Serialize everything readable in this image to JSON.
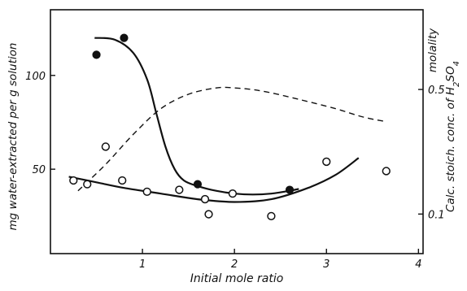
{
  "chart_data": {
    "type": "scatter",
    "title": "",
    "xlabel": "Initial mole ratio",
    "ylabel": "mg water-extracted per g solution",
    "y2label_top": "molality",
    "y2label": "Calc. stoich. conc. of H2SO4",
    "xlim": [
      0,
      4.05
    ],
    "ylim": [
      5,
      135
    ],
    "y2lim": [
      0.06,
      1.4
    ],
    "y2scale": "log",
    "grid": false,
    "x_ticks": [
      {
        "v": 1,
        "label": "1"
      },
      {
        "v": 2,
        "label": "2"
      },
      {
        "v": 3,
        "label": "3"
      },
      {
        "v": 4,
        "label": "4"
      }
    ],
    "y_ticks": [
      {
        "v": 50,
        "label": "50"
      },
      {
        "v": 100,
        "label": "100"
      }
    ],
    "y2_ticks": [
      {
        "v": 0.1,
        "label": "0.1"
      },
      {
        "v": 0.5,
        "label": "0.5"
      }
    ],
    "series": [
      {
        "name": "",
        "kind": "filled-points",
        "points": [
          [
            0.5,
            111
          ],
          [
            0.8,
            120
          ],
          [
            1.6,
            42
          ],
          [
            2.6,
            39
          ]
        ]
      },
      {
        "name": "",
        "kind": "open-points",
        "points": [
          [
            0.25,
            44
          ],
          [
            0.4,
            42
          ],
          [
            0.6,
            62
          ],
          [
            0.78,
            44
          ],
          [
            1.05,
            38
          ],
          [
            1.4,
            39
          ],
          [
            1.68,
            34
          ],
          [
            1.72,
            26
          ],
          [
            1.98,
            37
          ],
          [
            2.4,
            25
          ],
          [
            3.0,
            54
          ],
          [
            3.65,
            49
          ]
        ]
      },
      {
        "name": "",
        "kind": "solid-curve",
        "axis": "left",
        "points": [
          [
            0.48,
            120
          ],
          [
            0.7,
            119
          ],
          [
            0.9,
            112
          ],
          [
            1.05,
            98
          ],
          [
            1.15,
            80
          ],
          [
            1.25,
            62
          ],
          [
            1.35,
            50
          ],
          [
            1.45,
            44
          ],
          [
            1.6,
            41
          ],
          [
            1.8,
            38.5
          ],
          [
            2.0,
            37
          ],
          [
            2.2,
            36.5
          ],
          [
            2.4,
            37
          ],
          [
            2.6,
            38.5
          ],
          [
            2.7,
            39.5
          ]
        ]
      },
      {
        "name": "",
        "kind": "solid-curve",
        "axis": "left",
        "points": [
          [
            0.2,
            46
          ],
          [
            0.5,
            43
          ],
          [
            0.8,
            40
          ],
          [
            1.2,
            37
          ],
          [
            1.6,
            34
          ],
          [
            2.0,
            32.5
          ],
          [
            2.4,
            34
          ],
          [
            2.8,
            40
          ],
          [
            3.1,
            47
          ],
          [
            3.35,
            56
          ]
        ]
      },
      {
        "name": "",
        "kind": "dashed-curve",
        "axis": "right",
        "points": [
          [
            0.3,
            0.135
          ],
          [
            0.6,
            0.19
          ],
          [
            0.9,
            0.28
          ],
          [
            1.2,
            0.39
          ],
          [
            1.5,
            0.47
          ],
          [
            1.8,
            0.51
          ],
          [
            2.0,
            0.51
          ],
          [
            2.3,
            0.49
          ],
          [
            2.7,
            0.44
          ],
          [
            3.1,
            0.39
          ],
          [
            3.4,
            0.35
          ],
          [
            3.65,
            0.33
          ]
        ]
      }
    ]
  }
}
